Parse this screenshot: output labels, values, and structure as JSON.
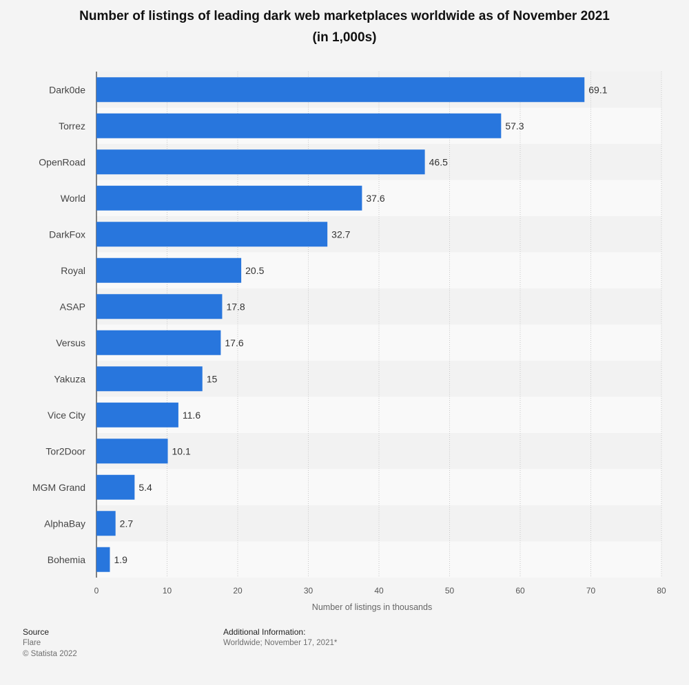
{
  "chart_data": {
    "type": "bar",
    "orientation": "horizontal",
    "title_line1": "Number of listings of leading dark web marketplaces worldwide as of November 2021",
    "title_line2": "(in 1,000s)",
    "categories": [
      "Dark0de",
      "Torrez",
      "OpenRoad",
      "World",
      "DarkFox",
      "Royal",
      "ASAP",
      "Versus",
      "Yakuza",
      "Vice City",
      "Tor2Door",
      "MGM Grand",
      "AlphaBay",
      "Bohemia"
    ],
    "values": [
      69.1,
      57.3,
      46.5,
      37.6,
      32.7,
      20.5,
      17.8,
      17.6,
      15,
      11.6,
      10.1,
      5.4,
      2.7,
      1.9
    ],
    "value_labels": [
      "69.1",
      "57.3",
      "46.5",
      "37.6",
      "32.7",
      "20.5",
      "17.8",
      "17.6",
      "15",
      "11.6",
      "10.1",
      "5.4",
      "2.7",
      "1.9"
    ],
    "xlabel": "Number of listings in thousands",
    "xlim": [
      0,
      80
    ],
    "xticks": [
      0,
      10,
      20,
      30,
      40,
      50,
      60,
      70,
      80
    ],
    "grid": true,
    "bar_color": "#2876dd"
  },
  "footer": {
    "source_title": "Source",
    "source_name": "Flare",
    "copyright": "© Statista 2022",
    "info_title": "Additional Information:",
    "info_text": "Worldwide; November 17, 2021*"
  }
}
